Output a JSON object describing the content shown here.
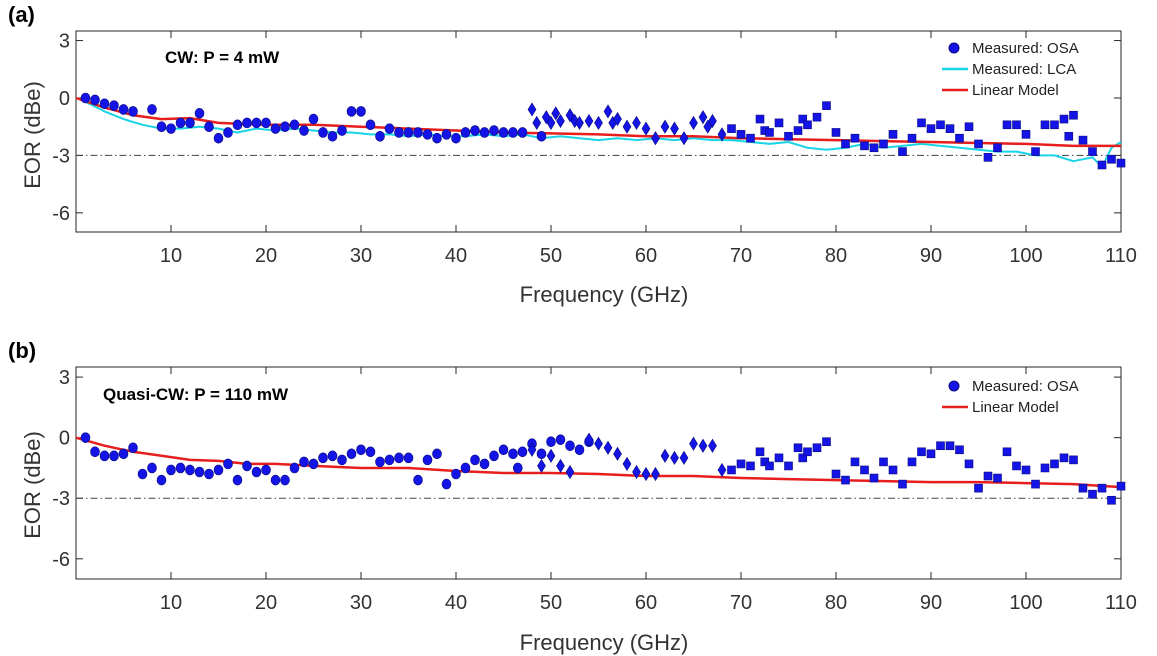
{
  "colors": {
    "osa": "#1414E6",
    "lca": "#19D3E6",
    "model": "#E61E1E",
    "threshold": "#444444"
  },
  "chart_data": [
    {
      "type": "scatter",
      "panel_label": "(a)",
      "annotation": "CW: P = 4 mW",
      "xlabel": "Frequency (GHz)",
      "ylabel": "EOR (dBe)",
      "xlim": [
        0,
        110
      ],
      "ylim": [
        -7,
        3.5
      ],
      "xticks": [
        10,
        20,
        30,
        40,
        50,
        60,
        70,
        80,
        90,
        100,
        110
      ],
      "yticks": [
        3,
        0,
        -3,
        -6
      ],
      "ytick_labels": [
        "3",
        "0",
        "-3",
        "-6"
      ],
      "threshold_y": -3,
      "legend": [
        "Measured: OSA",
        "Measured: LCA",
        "Linear Model"
      ],
      "legend_position": "top-right",
      "osa_circles": [
        [
          1,
          0
        ],
        [
          2,
          -0.1
        ],
        [
          3,
          -0.3
        ],
        [
          4,
          -0.4
        ],
        [
          5,
          -0.6
        ],
        [
          6,
          -0.7
        ],
        [
          8,
          -0.6
        ],
        [
          9,
          -1.5
        ],
        [
          10,
          -1.6
        ],
        [
          11,
          -1.3
        ],
        [
          12,
          -1.3
        ],
        [
          13,
          -0.8
        ],
        [
          14,
          -1.5
        ],
        [
          15,
          -2.1
        ],
        [
          16,
          -1.8
        ],
        [
          17,
          -1.4
        ],
        [
          18,
          -1.3
        ],
        [
          19,
          -1.3
        ],
        [
          20,
          -1.3
        ],
        [
          21,
          -1.6
        ],
        [
          22,
          -1.5
        ],
        [
          23,
          -1.4
        ],
        [
          24,
          -1.7
        ],
        [
          25,
          -1.1
        ],
        [
          26,
          -1.8
        ],
        [
          27,
          -2.0
        ],
        [
          28,
          -1.7
        ],
        [
          29,
          -0.7
        ],
        [
          30,
          -0.7
        ],
        [
          31,
          -1.4
        ],
        [
          32,
          -2.0
        ],
        [
          33,
          -1.6
        ],
        [
          34,
          -1.8
        ],
        [
          35,
          -1.8
        ],
        [
          36,
          -1.8
        ],
        [
          37,
          -1.9
        ],
        [
          38,
          -2.1
        ],
        [
          39,
          -1.9
        ],
        [
          40,
          -2.1
        ],
        [
          41,
          -1.8
        ],
        [
          42,
          -1.7
        ],
        [
          43,
          -1.8
        ],
        [
          44,
          -1.7
        ],
        [
          45,
          -1.8
        ],
        [
          46,
          -1.8
        ],
        [
          47,
          -1.8
        ],
        [
          49,
          -2.0
        ]
      ],
      "osa_diamonds": [
        [
          48,
          -0.6
        ],
        [
          48.5,
          -1.3
        ],
        [
          49.5,
          -1.0
        ],
        [
          50,
          -1.3
        ],
        [
          50.5,
          -0.8
        ],
        [
          51,
          -1.2
        ],
        [
          52,
          -0.9
        ],
        [
          52.5,
          -1.2
        ],
        [
          53,
          -1.3
        ],
        [
          54,
          -1.2
        ],
        [
          55,
          -1.3
        ],
        [
          56,
          -0.7
        ],
        [
          56.5,
          -1.3
        ],
        [
          57,
          -1.1
        ],
        [
          58,
          -1.5
        ],
        [
          59,
          -1.3
        ],
        [
          60,
          -1.6
        ],
        [
          61,
          -2.1
        ],
        [
          62,
          -1.5
        ],
        [
          63,
          -1.6
        ],
        [
          64,
          -2.1
        ],
        [
          65,
          -1.3
        ],
        [
          66,
          -1.0
        ],
        [
          66.5,
          -1.5
        ],
        [
          67,
          -1.2
        ],
        [
          68,
          -1.9
        ]
      ],
      "osa_squares": [
        [
          69,
          -1.6
        ],
        [
          70,
          -1.9
        ],
        [
          71,
          -2.1
        ],
        [
          72,
          -1.1
        ],
        [
          72.5,
          -1.7
        ],
        [
          73,
          -1.8
        ],
        [
          74,
          -1.3
        ],
        [
          75,
          -2.0
        ],
        [
          76,
          -1.7
        ],
        [
          76.5,
          -1.1
        ],
        [
          77,
          -1.4
        ],
        [
          78,
          -1.0
        ],
        [
          79,
          -0.4
        ],
        [
          80,
          -1.8
        ],
        [
          81,
          -2.4
        ],
        [
          82,
          -2.1
        ],
        [
          83,
          -2.5
        ],
        [
          84,
          -2.6
        ],
        [
          85,
          -2.4
        ],
        [
          86,
          -1.9
        ],
        [
          87,
          -2.8
        ],
        [
          88,
          -2.1
        ],
        [
          89,
          -1.3
        ],
        [
          90,
          -1.6
        ],
        [
          91,
          -1.4
        ],
        [
          92,
          -1.6
        ],
        [
          93,
          -2.1
        ],
        [
          94,
          -1.5
        ],
        [
          95,
          -2.4
        ],
        [
          96,
          -3.1
        ],
        [
          97,
          -2.6
        ],
        [
          98,
          -1.4
        ],
        [
          99,
          -1.4
        ],
        [
          100,
          -1.9
        ],
        [
          101,
          -2.8
        ],
        [
          102,
          -1.4
        ],
        [
          103,
          -1.4
        ],
        [
          104,
          -1.1
        ],
        [
          104.5,
          -2.0
        ],
        [
          105,
          -0.9
        ],
        [
          106,
          -2.2
        ],
        [
          107,
          -2.8
        ],
        [
          108,
          -3.5
        ],
        [
          109,
          -3.2
        ],
        [
          110,
          -3.4
        ]
      ],
      "lca_line": [
        [
          1,
          -0.2
        ],
        [
          3,
          -0.7
        ],
        [
          5,
          -1.1
        ],
        [
          7,
          -1.4
        ],
        [
          9,
          -1.6
        ],
        [
          11,
          -1.6
        ],
        [
          13,
          -1.5
        ],
        [
          15,
          -1.6
        ],
        [
          17,
          -1.8
        ],
        [
          19,
          -1.6
        ],
        [
          21,
          -1.7
        ],
        [
          23,
          -1.6
        ],
        [
          25,
          -1.7
        ],
        [
          27,
          -1.8
        ],
        [
          29,
          -1.8
        ],
        [
          31,
          -1.9
        ],
        [
          33,
          -1.9
        ],
        [
          35,
          -2.0
        ],
        [
          37,
          -1.9
        ],
        [
          39,
          -2.0
        ],
        [
          41,
          -2.0
        ],
        [
          43,
          -1.9
        ],
        [
          45,
          -2.0
        ],
        [
          47,
          -1.9
        ],
        [
          49,
          -2.1
        ],
        [
          51,
          -2.0
        ],
        [
          53,
          -2.1
        ],
        [
          55,
          -2.2
        ],
        [
          57,
          -2.1
        ],
        [
          59,
          -2.2
        ],
        [
          61,
          -2.1
        ],
        [
          63,
          -2.2
        ],
        [
          65,
          -2.1
        ],
        [
          67,
          -2.2
        ],
        [
          69,
          -2.2
        ],
        [
          71,
          -2.3
        ],
        [
          73,
          -2.4
        ],
        [
          75,
          -2.3
        ],
        [
          77,
          -2.6
        ],
        [
          79,
          -2.7
        ],
        [
          81,
          -2.6
        ],
        [
          83,
          -2.4
        ],
        [
          85,
          -2.6
        ],
        [
          87,
          -2.5
        ],
        [
          89,
          -2.4
        ],
        [
          91,
          -2.5
        ],
        [
          93,
          -2.6
        ],
        [
          95,
          -2.7
        ],
        [
          97,
          -2.8
        ],
        [
          99,
          -2.8
        ],
        [
          101,
          -3.0
        ],
        [
          103,
          -3.0
        ],
        [
          105,
          -3.3
        ],
        [
          107,
          -3.1
        ],
        [
          108,
          -3.6
        ],
        [
          109,
          -2.6
        ],
        [
          110,
          -2.3
        ]
      ],
      "model_line": [
        [
          0,
          0
        ],
        [
          3,
          -0.5
        ],
        [
          6,
          -0.9
        ],
        [
          9,
          -1.1
        ],
        [
          12,
          -1.05
        ],
        [
          15,
          -1.3
        ],
        [
          20,
          -1.4
        ],
        [
          25,
          -1.4
        ],
        [
          30,
          -1.5
        ],
        [
          35,
          -1.6
        ],
        [
          40,
          -1.7
        ],
        [
          45,
          -1.8
        ],
        [
          50,
          -1.85
        ],
        [
          55,
          -1.9
        ],
        [
          60,
          -2.0
        ],
        [
          65,
          -2.0
        ],
        [
          70,
          -2.1
        ],
        [
          75,
          -2.15
        ],
        [
          80,
          -2.2
        ],
        [
          85,
          -2.25
        ],
        [
          90,
          -2.3
        ],
        [
          95,
          -2.35
        ],
        [
          100,
          -2.4
        ],
        [
          105,
          -2.5
        ],
        [
          110,
          -2.5
        ]
      ]
    },
    {
      "type": "scatter",
      "panel_label": "(b)",
      "annotation": "Quasi-CW: P = 110 mW",
      "xlabel": "Frequency (GHz)",
      "ylabel": "EOR (dBe)",
      "xlim": [
        0,
        110
      ],
      "ylim": [
        -7,
        3.5
      ],
      "xticks": [
        10,
        20,
        30,
        40,
        50,
        60,
        70,
        80,
        90,
        100,
        110
      ],
      "yticks": [
        3,
        0,
        -3,
        -6
      ],
      "ytick_labels": [
        "3",
        "0",
        "-3",
        "-6"
      ],
      "threshold_y": -3,
      "legend": [
        "Measured: OSA",
        "Linear Model"
      ],
      "legend_position": "top-right",
      "osa_circles": [
        [
          1,
          0
        ],
        [
          2,
          -0.7
        ],
        [
          3,
          -0.9
        ],
        [
          4,
          -0.9
        ],
        [
          5,
          -0.8
        ],
        [
          6,
          -0.5
        ],
        [
          7,
          -1.8
        ],
        [
          8,
          -1.5
        ],
        [
          9,
          -2.1
        ],
        [
          10,
          -1.6
        ],
        [
          11,
          -1.5
        ],
        [
          12,
          -1.6
        ],
        [
          13,
          -1.7
        ],
        [
          14,
          -1.8
        ],
        [
          15,
          -1.6
        ],
        [
          16,
          -1.3
        ],
        [
          17,
          -2.1
        ],
        [
          18,
          -1.4
        ],
        [
          19,
          -1.7
        ],
        [
          20,
          -1.6
        ],
        [
          21,
          -2.1
        ],
        [
          22,
          -2.1
        ],
        [
          23,
          -1.5
        ],
        [
          24,
          -1.2
        ],
        [
          25,
          -1.3
        ],
        [
          26,
          -1.0
        ],
        [
          27,
          -0.9
        ],
        [
          28,
          -1.1
        ],
        [
          29,
          -0.8
        ],
        [
          30,
          -0.6
        ],
        [
          31,
          -0.7
        ],
        [
          32,
          -1.2
        ],
        [
          33,
          -1.1
        ],
        [
          34,
          -1.0
        ],
        [
          35,
          -1.0
        ],
        [
          36,
          -2.1
        ],
        [
          37,
          -1.1
        ],
        [
          38,
          -0.8
        ],
        [
          39,
          -2.3
        ],
        [
          40,
          -1.8
        ],
        [
          41,
          -1.5
        ],
        [
          42,
          -1.1
        ],
        [
          43,
          -1.3
        ],
        [
          44,
          -0.9
        ],
        [
          45,
          -0.6
        ],
        [
          46,
          -0.8
        ],
        [
          46.5,
          -1.5
        ],
        [
          47,
          -0.7
        ],
        [
          48,
          -0.3
        ],
        [
          49,
          -0.8
        ],
        [
          50,
          -0.2
        ],
        [
          51,
          -0.1
        ],
        [
          52,
          -0.4
        ],
        [
          53,
          -0.6
        ],
        [
          54,
          -0.2
        ]
      ],
      "osa_diamonds": [
        [
          48,
          -0.6
        ],
        [
          49,
          -1.4
        ],
        [
          50,
          -0.9
        ],
        [
          51,
          -1.4
        ],
        [
          52,
          -1.7
        ],
        [
          54,
          -0.1
        ],
        [
          55,
          -0.3
        ],
        [
          56,
          -0.5
        ],
        [
          57,
          -0.8
        ],
        [
          58,
          -1.3
        ],
        [
          59,
          -1.7
        ],
        [
          60,
          -1.8
        ],
        [
          61,
          -1.8
        ],
        [
          62,
          -0.9
        ],
        [
          63,
          -1.0
        ],
        [
          64,
          -1.0
        ],
        [
          65,
          -0.3
        ],
        [
          66,
          -0.4
        ],
        [
          67,
          -0.4
        ],
        [
          68,
          -1.6
        ]
      ],
      "osa_squares": [
        [
          69,
          -1.6
        ],
        [
          70,
          -1.3
        ],
        [
          71,
          -1.4
        ],
        [
          72,
          -0.7
        ],
        [
          72.5,
          -1.2
        ],
        [
          73,
          -1.4
        ],
        [
          74,
          -1.0
        ],
        [
          75,
          -1.4
        ],
        [
          76,
          -0.5
        ],
        [
          76.5,
          -1.0
        ],
        [
          77,
          -0.7
        ],
        [
          78,
          -0.5
        ],
        [
          79,
          -0.2
        ],
        [
          80,
          -1.8
        ],
        [
          81,
          -2.1
        ],
        [
          82,
          -1.2
        ],
        [
          83,
          -1.6
        ],
        [
          84,
          -2.0
        ],
        [
          85,
          -1.2
        ],
        [
          86,
          -1.6
        ],
        [
          87,
          -2.3
        ],
        [
          88,
          -1.2
        ],
        [
          89,
          -0.7
        ],
        [
          90,
          -0.8
        ],
        [
          91,
          -0.4
        ],
        [
          92,
          -0.4
        ],
        [
          93,
          -0.6
        ],
        [
          94,
          -1.3
        ],
        [
          95,
          -2.5
        ],
        [
          96,
          -1.9
        ],
        [
          97,
          -2.0
        ],
        [
          98,
          -0.7
        ],
        [
          99,
          -1.4
        ],
        [
          100,
          -1.6
        ],
        [
          101,
          -2.3
        ],
        [
          102,
          -1.5
        ],
        [
          103,
          -1.3
        ],
        [
          104,
          -1.0
        ],
        [
          105,
          -1.1
        ],
        [
          106,
          -2.5
        ],
        [
          107,
          -2.8
        ],
        [
          108,
          -2.5
        ],
        [
          109,
          -3.1
        ],
        [
          110,
          -2.4
        ]
      ],
      "model_line": [
        [
          0,
          0
        ],
        [
          3,
          -0.4
        ],
        [
          6,
          -0.7
        ],
        [
          9,
          -0.9
        ],
        [
          12,
          -1.1
        ],
        [
          15,
          -1.15
        ],
        [
          18,
          -1.3
        ],
        [
          21,
          -1.3
        ],
        [
          25,
          -1.4
        ],
        [
          30,
          -1.5
        ],
        [
          35,
          -1.5
        ],
        [
          40,
          -1.65
        ],
        [
          45,
          -1.75
        ],
        [
          50,
          -1.75
        ],
        [
          55,
          -1.8
        ],
        [
          60,
          -1.9
        ],
        [
          65,
          -1.9
        ],
        [
          70,
          -2.0
        ],
        [
          75,
          -2.05
        ],
        [
          80,
          -2.1
        ],
        [
          85,
          -2.15
        ],
        [
          90,
          -2.2
        ],
        [
          95,
          -2.2
        ],
        [
          100,
          -2.25
        ],
        [
          105,
          -2.3
        ],
        [
          110,
          -2.45
        ]
      ]
    }
  ]
}
